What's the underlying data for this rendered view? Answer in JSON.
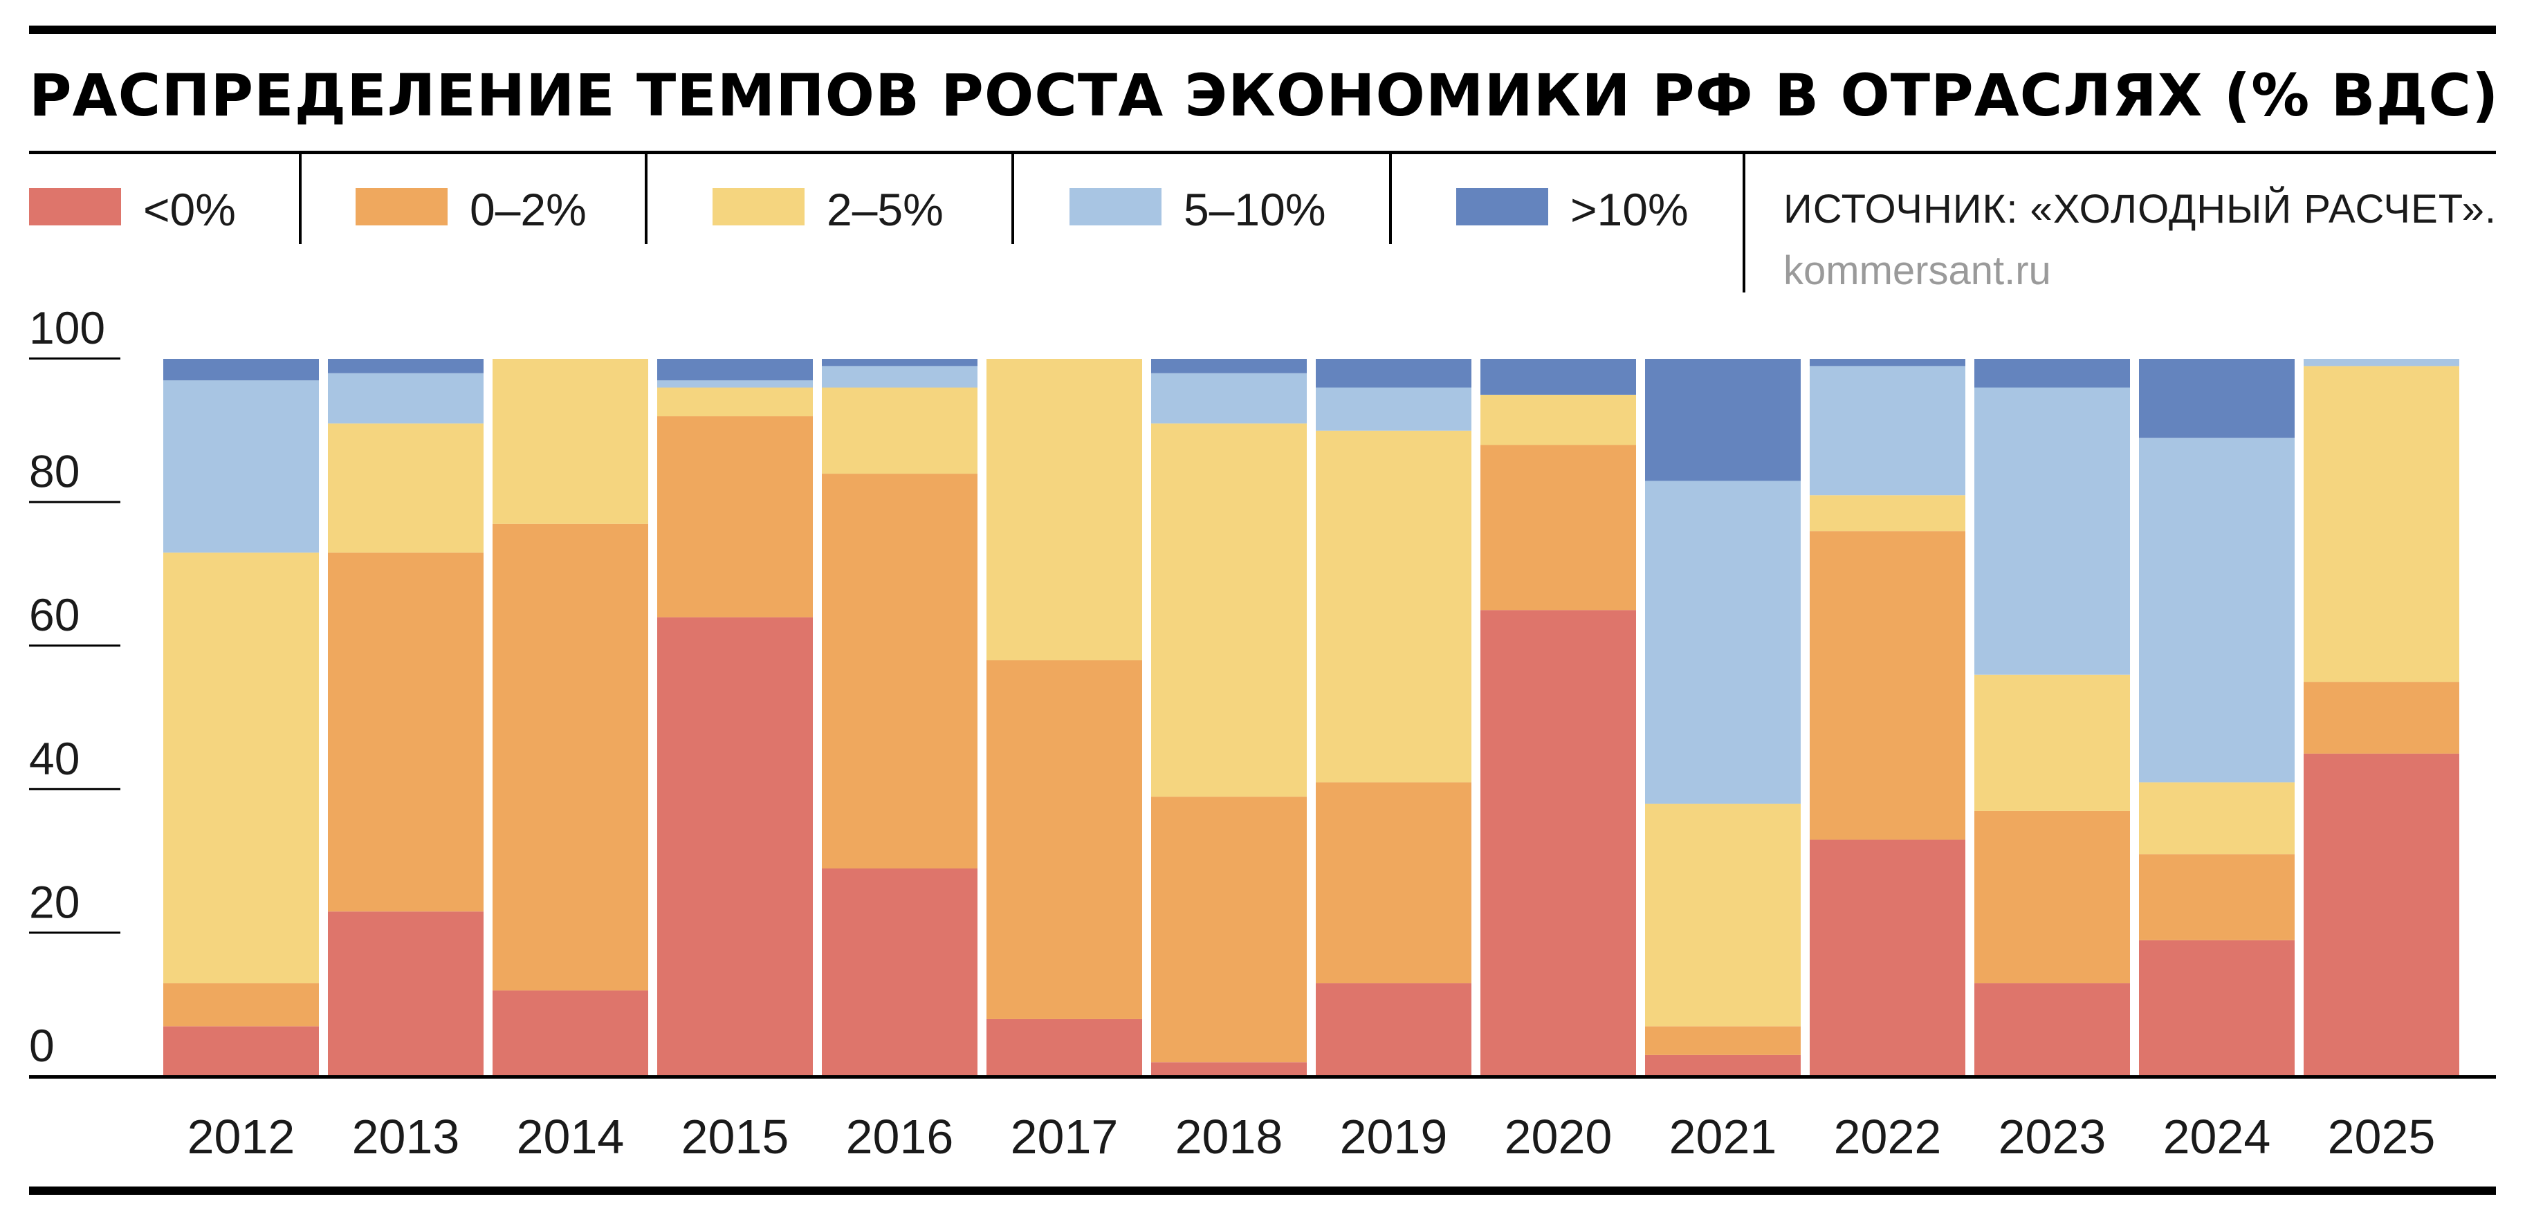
{
  "header": {
    "title": "РАСПРЕДЕЛЕНИЕ ТЕМПОВ РОСТА ЭКОНОМИКИ РФ В ОТРАСЛЯХ (% ВДС)",
    "source": "ИСТОЧНИК: «ХОЛОДНЫЙ РАСЧЕТ».",
    "site": "kommersant.ru"
  },
  "legend": [
    {
      "label": "<0%",
      "color": "#de756b"
    },
    {
      "label": "0–2%",
      "color": "#efa85e"
    },
    {
      "label": "2–5%",
      "color": "#f5d57f"
    },
    {
      "label": "5–10%",
      "color": "#a8c5e3"
    },
    {
      "label": ">10%",
      "color": "#6484be"
    }
  ],
  "chart_data": {
    "type": "bar",
    "stacked": true,
    "title": "РАСПРЕДЕЛЕНИЕ ТЕМПОВ РОСТА ЭКОНОМИКИ РФ В ОТРАСЛЯХ (% ВДС)",
    "xlabel": "",
    "ylabel": "",
    "ylim": [
      0,
      100
    ],
    "yticks": [
      0,
      20,
      40,
      60,
      80,
      100
    ],
    "grid": false,
    "legend_position": "top",
    "categories": [
      "2012",
      "2013",
      "2014",
      "2015",
      "2016",
      "2017",
      "2018",
      "2019",
      "2020",
      "2021",
      "2022",
      "2023",
      "2024",
      "2025"
    ],
    "series": [
      {
        "name": "<0%",
        "color": "#de756b",
        "values": [
          7,
          23,
          12,
          64,
          29,
          8,
          2,
          13,
          65,
          3,
          33,
          13,
          19,
          45
        ]
      },
      {
        "name": "0–2%",
        "color": "#efa85e",
        "values": [
          6,
          50,
          65,
          28,
          55,
          50,
          37,
          28,
          23,
          4,
          43,
          24,
          12,
          10
        ]
      },
      {
        "name": "2–5%",
        "color": "#f5d57f",
        "values": [
          60,
          18,
          23,
          4,
          12,
          42,
          52,
          49,
          7,
          31,
          5,
          19,
          10,
          44
        ]
      },
      {
        "name": "5–10%",
        "color": "#a8c5e3",
        "values": [
          24,
          7,
          0,
          1,
          3,
          0,
          7,
          6,
          0,
          45,
          18,
          40,
          48,
          1
        ]
      },
      {
        "name": ">10%",
        "color": "#6484be",
        "values": [
          3,
          2,
          0,
          3,
          1,
          0,
          2,
          4,
          5,
          17,
          1,
          4,
          11,
          0
        ]
      }
    ]
  }
}
